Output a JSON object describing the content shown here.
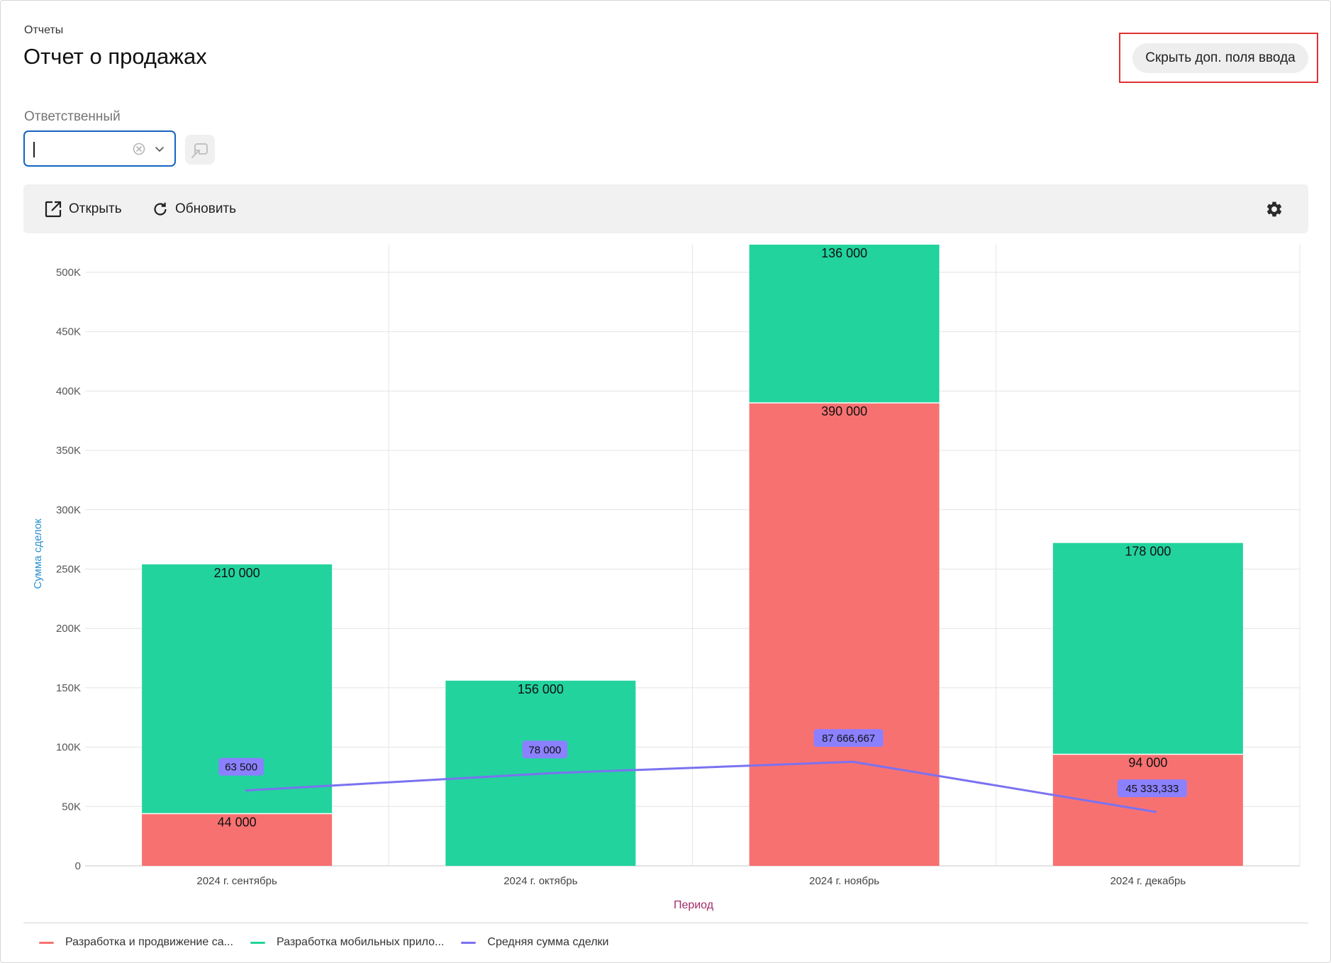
{
  "header": {
    "breadcrumb": "Отчеты",
    "title": "Отчет о продажах",
    "hide_fields_button": "Скрыть доп. поля ввода"
  },
  "filters": {
    "responsible_label": "Ответственный",
    "responsible_value": "",
    "responsible_placeholder": ""
  },
  "toolbar": {
    "open_label": "Открыть",
    "refresh_label": "Обновить"
  },
  "colors": {
    "series_red": "#f87171",
    "series_green": "#22d39d",
    "series_line": "#7b72f0",
    "line_label_bg": "#8b80ff",
    "accent_blue": "#1565c0",
    "highlight": "#e03131"
  },
  "chart_data": {
    "type": "bar",
    "stacked": true,
    "categories": [
      "2024 г. сентябрь",
      "2024 г. октябрь",
      "2024 г. ноябрь",
      "2024 г. декабрь"
    ],
    "series": [
      {
        "name": "Разработка и продвижение са...",
        "type": "bar",
        "values": [
          44000,
          null,
          390000,
          94000
        ],
        "labels": [
          "44 000",
          "",
          "390 000",
          "94 000"
        ]
      },
      {
        "name": "Разработка мобильных прило...",
        "type": "bar",
        "values": [
          210000,
          156000,
          136000,
          178000
        ],
        "labels": [
          "210 000",
          "156 000",
          "136 000",
          "178 000"
        ]
      },
      {
        "name": "Средняя сумма сделки",
        "type": "line",
        "values": [
          63500,
          78000,
          87666.667,
          45333.333
        ],
        "labels": [
          "63 500",
          "78 000",
          "87 666,667",
          "45 333,333"
        ]
      }
    ],
    "xlabel": "Период",
    "ylabel": "Сумма сделок",
    "ylim": [
      0,
      520000
    ],
    "yticks": [
      0,
      50000,
      100000,
      150000,
      200000,
      250000,
      300000,
      350000,
      400000,
      450000,
      500000
    ],
    "ytick_labels": [
      "0",
      "50K",
      "100K",
      "150K",
      "200K",
      "250K",
      "300K",
      "350K",
      "400K",
      "450K",
      "500K"
    ],
    "grid": true,
    "legend_position": "bottom-left"
  }
}
